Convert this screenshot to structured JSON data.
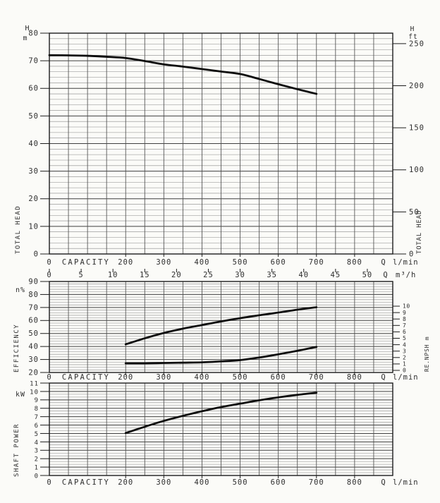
{
  "colors": {
    "background": "#fbfbf8",
    "curve": "#0d0d0d",
    "grid_minor": "#8a8a8a",
    "grid_major": "#3f3f3f",
    "grid_vert": "#4f4f4f",
    "frame": "#1c1c1c",
    "text": "#2e2e2e"
  },
  "chart_data": [
    {
      "type": "line",
      "id": "total-head",
      "y_left": {
        "unit_lines": [
          "H",
          "m"
        ],
        "axis_title": "TOTAL HEAD",
        "min": 0,
        "max": 80,
        "ticks": [
          0,
          10,
          20,
          30,
          40,
          50,
          60,
          70,
          80
        ],
        "minor_per_major": 5
      },
      "y_right": {
        "unit_lines": [
          "H",
          "ft"
        ],
        "axis_title": "TOTAL HEAD",
        "ticks": [
          0,
          50,
          100,
          150,
          200,
          250
        ],
        "unit": "ft"
      },
      "x_axis": {
        "name_label": "CAPACITY",
        "min": 0,
        "max": 900,
        "grid_step": 50,
        "primary": {
          "ticks": [
            0,
            200,
            300,
            400,
            500,
            600,
            700,
            800
          ],
          "flow_symbol": "Q",
          "unit": "l/min"
        },
        "secondary": {
          "ticks": [
            0,
            5,
            10,
            15,
            20,
            25,
            30,
            35,
            40,
            45,
            50
          ],
          "flow_symbol": "Q",
          "unit": "m³/h"
        }
      },
      "series": [
        {
          "name": "head-curve",
          "scale": "left",
          "points": [
            [
              0,
              72
            ],
            [
              50,
              71.95
            ],
            [
              100,
              71.8
            ],
            [
              150,
              71.45
            ],
            [
              200,
              71
            ],
            [
              250,
              69.9
            ],
            [
              300,
              68.7
            ],
            [
              350,
              67.9
            ],
            [
              400,
              67
            ],
            [
              450,
              66.1
            ],
            [
              500,
              65.2
            ],
            [
              550,
              63.4
            ],
            [
              600,
              61.5
            ],
            [
              650,
              59.7
            ],
            [
              700,
              58
            ]
          ]
        }
      ]
    },
    {
      "type": "line",
      "id": "efficiency-npsh",
      "y_left": {
        "unit_lines": [
          "n%"
        ],
        "axis_title": "EFFICIENCY",
        "min": 20,
        "max": 90,
        "ticks": [
          20,
          30,
          40,
          50,
          60,
          70,
          80,
          90
        ],
        "minor_per_major": 5
      },
      "y_right": {
        "axis_title": "RE.NPSH m",
        "ticks": [
          0,
          1,
          2,
          3,
          4,
          5,
          6,
          7,
          8,
          9,
          10
        ],
        "unit": "m"
      },
      "x_axis": {
        "name_label": "CAPACITY",
        "min": 0,
        "max": 900,
        "grid_step": 50,
        "primary": {
          "ticks": [
            0,
            200,
            300,
            400,
            500,
            600,
            700,
            800
          ],
          "flow_symbol": "Q",
          "unit": "l/min"
        }
      },
      "series": [
        {
          "name": "efficiency-curve",
          "scale": "left",
          "points": [
            [
              200,
              41.7
            ],
            [
              250,
              46.3
            ],
            [
              300,
              50.4
            ],
            [
              350,
              53.7
            ],
            [
              400,
              56.5
            ],
            [
              450,
              59.3
            ],
            [
              500,
              61.8
            ],
            [
              550,
              64
            ],
            [
              600,
              66.1
            ],
            [
              650,
              68.3
            ],
            [
              700,
              70.2
            ]
          ]
        },
        {
          "name": "npsh-curve",
          "scale": "right",
          "points": [
            [
              200,
              1.1
            ],
            [
              250,
              1.1
            ],
            [
              300,
              1.15
            ],
            [
              350,
              1.2
            ],
            [
              400,
              1.25
            ],
            [
              450,
              1.4
            ],
            [
              500,
              1.6
            ],
            [
              550,
              2.0
            ],
            [
              600,
              2.5
            ],
            [
              650,
              3.05
            ],
            [
              700,
              3.65
            ]
          ]
        }
      ]
    },
    {
      "type": "line",
      "id": "shaft-power",
      "y_left": {
        "unit_lines": [
          "kW"
        ],
        "axis_title": "SHAFT POWER",
        "min": 0,
        "max": 11,
        "ticks": [
          0,
          1,
          2,
          3,
          4,
          5,
          6,
          7,
          8,
          9,
          10,
          11
        ],
        "minor_per_major": 3
      },
      "x_axis": {
        "name_label": "CAPACITY",
        "min": 0,
        "max": 900,
        "grid_step": 50,
        "primary": {
          "ticks": [
            0,
            200,
            300,
            400,
            500,
            600,
            700,
            800
          ],
          "flow_symbol": "Q",
          "unit": "l/min"
        }
      },
      "series": [
        {
          "name": "power-curve",
          "scale": "left",
          "points": [
            [
              200,
              5.05
            ],
            [
              250,
              5.8
            ],
            [
              300,
              6.5
            ],
            [
              350,
              7.1
            ],
            [
              400,
              7.65
            ],
            [
              450,
              8.15
            ],
            [
              500,
              8.55
            ],
            [
              550,
              8.95
            ],
            [
              600,
              9.3
            ],
            [
              650,
              9.6
            ],
            [
              700,
              9.85
            ]
          ]
        }
      ]
    }
  ]
}
